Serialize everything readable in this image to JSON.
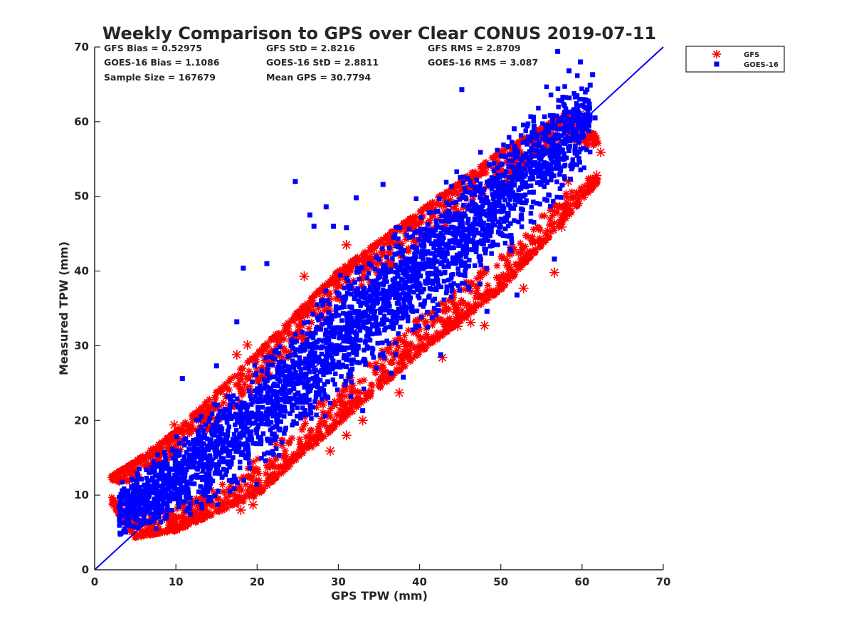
{
  "chart_data": {
    "type": "scatter",
    "title": "Weekly Comparison to GPS over Clear CONUS 2019-07-11",
    "xlabel": "GPS TPW (mm)",
    "ylabel": "Measured TPW (mm)",
    "xlim": [
      0,
      70
    ],
    "ylim": [
      0,
      70
    ],
    "xticks": [
      "0",
      "10",
      "20",
      "30",
      "40",
      "50",
      "60",
      "70"
    ],
    "yticks": [
      "0",
      "10",
      "20",
      "30",
      "40",
      "50",
      "60",
      "70"
    ],
    "grid": false,
    "legend_position": "outside-top-right",
    "reference_line": {
      "name": "1:1",
      "from": [
        0,
        0
      ],
      "to": [
        70,
        70
      ],
      "color": "#0000ff"
    },
    "stats": [
      [
        "GFS Bias = 0.52975",
        "GFS StD = 2.8216",
        "GFS RMS = 2.8709"
      ],
      [
        "GOES-16 Bias = 1.1086",
        "GOES-16 StD = 2.8811",
        "GOES-16 RMS = 3.087"
      ],
      [
        "Sample Size = 167679",
        "Mean GPS = 30.7794",
        ""
      ]
    ],
    "series": [
      {
        "name": "GFS",
        "marker": "asterisk",
        "color": "#ff0000",
        "band": [
          [
            2,
            9.0,
            12.5
          ],
          [
            5,
            4.3,
            14.5
          ],
          [
            10,
            5.2,
            18.5
          ],
          [
            20,
            10.0,
            29.0
          ],
          [
            30,
            19.5,
            40.0
          ],
          [
            40,
            29.0,
            48.0
          ],
          [
            50,
            37.5,
            56.0
          ],
          [
            58,
            47.0,
            61.0
          ],
          [
            62,
            52.0,
            58.0
          ]
        ],
        "outliers": [
          [
            37.5,
            23.7
          ],
          [
            56.6,
            39.8
          ],
          [
            29,
            15.9
          ],
          [
            18,
            8.0
          ],
          [
            19.5,
            8.7
          ],
          [
            42.8,
            28.4
          ],
          [
            48,
            32.7
          ],
          [
            44.7,
            32.6
          ],
          [
            52.8,
            37.7
          ],
          [
            46.3,
            33.1
          ],
          [
            57.5,
            45.9
          ],
          [
            61.8,
            52.8
          ],
          [
            62.3,
            55.9
          ],
          [
            61.3,
            57.9
          ],
          [
            58.3,
            52.0
          ],
          [
            60.5,
            61.0
          ],
          [
            25.8,
            39.3
          ],
          [
            31.0,
            43.5
          ],
          [
            17.5,
            28.8
          ],
          [
            18.8,
            30.1
          ],
          [
            9.8,
            19.4
          ],
          [
            33.0,
            20.0
          ],
          [
            31.0,
            18.0
          ]
        ]
      },
      {
        "name": "GOES-16",
        "marker": "square",
        "color": "#0000ff",
        "band": [
          [
            3,
            3.5,
            12.0
          ],
          [
            5,
            3.8,
            14.0
          ],
          [
            10,
            5.0,
            19.0
          ],
          [
            20,
            11.0,
            30.0
          ],
          [
            30,
            20.5,
            41.0
          ],
          [
            40,
            30.0,
            50.0
          ],
          [
            50,
            39.5,
            60.0
          ],
          [
            58,
            48.0,
            67.5
          ],
          [
            61,
            53.0,
            66.5
          ]
        ],
        "outliers": [
          [
            18.3,
            40.4
          ],
          [
            21.2,
            41.0
          ],
          [
            10.8,
            25.6
          ],
          [
            31,
            45.8
          ],
          [
            28.5,
            48.6
          ],
          [
            27,
            46.0
          ],
          [
            26.5,
            47.5
          ],
          [
            35.5,
            51.6
          ],
          [
            32.2,
            49.8
          ],
          [
            38.0,
            25.8
          ],
          [
            33.0,
            21.3
          ],
          [
            36.5,
            26.3
          ],
          [
            42.6,
            28.8
          ],
          [
            56.6,
            41.6
          ],
          [
            48.3,
            34.6
          ],
          [
            52.0,
            36.8
          ],
          [
            17.5,
            33.2
          ],
          [
            15.0,
            27.3
          ],
          [
            45.2,
            64.3
          ],
          [
            57.0,
            69.4
          ],
          [
            61.3,
            66.3
          ],
          [
            61.0,
            64.9
          ],
          [
            59.8,
            68.0
          ],
          [
            58.4,
            66.8
          ],
          [
            61.6,
            60.5
          ],
          [
            24.7,
            52.0
          ],
          [
            29.4,
            46.0
          ]
        ]
      }
    ]
  }
}
